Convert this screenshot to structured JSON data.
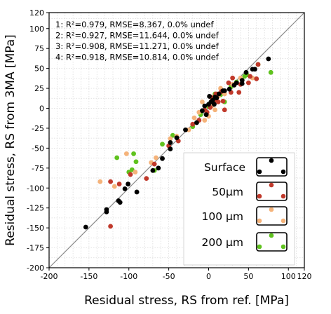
{
  "chart_data": {
    "type": "scatter",
    "xlabel": "Residual stress, RS from ref. [MPa]",
    "ylabel": "Residual stress, RS from 3MA [MPa]",
    "xlim": [
      -200,
      120
    ],
    "ylim": [
      -200,
      120
    ],
    "x_ticks": [
      "-200",
      "-150",
      "-100",
      "-50",
      "0",
      "50",
      "100",
      "120"
    ],
    "y_ticks": [
      "-200",
      "-175",
      "-150",
      "-125",
      "-100",
      "-75",
      "-50",
      "-25",
      "0",
      "25",
      "50",
      "75",
      "100",
      "120"
    ],
    "grid": true,
    "reference_line": "y = x",
    "stats": [
      "1: R²=0.979, RMSE=8.367, 0.0% undef",
      "2: R²=0.927, RMSE=11.644, 0.0% undef",
      "3: R²=0.908, RMSE=11.271, 0.0% undef",
      "4: R²=0.918, RMSE=10.814, 0.0% undef"
    ],
    "legend_position": "bottom-right",
    "series": [
      {
        "name": "Surface",
        "color": "#000000",
        "points": [
          [
            -154,
            -149
          ],
          [
            -128,
            -130
          ],
          [
            -128,
            -127
          ],
          [
            -113,
            -116
          ],
          [
            -111,
            -118
          ],
          [
            -105,
            -101
          ],
          [
            -101,
            -95
          ],
          [
            -90,
            -105
          ],
          [
            -70,
            -78
          ],
          [
            -63,
            -75
          ],
          [
            -58,
            -63
          ],
          [
            -48,
            -51
          ],
          [
            -48,
            -43
          ],
          [
            -40,
            -37
          ],
          [
            -29,
            -27
          ],
          [
            -15,
            -18
          ],
          [
            -8,
            -3
          ],
          [
            -5,
            3
          ],
          [
            -3,
            -8
          ],
          [
            0,
            5
          ],
          [
            1,
            15
          ],
          [
            3,
            8
          ],
          [
            5,
            10
          ],
          [
            7,
            5
          ],
          [
            8,
            14
          ],
          [
            10,
            13
          ],
          [
            13,
            18
          ],
          [
            18,
            22
          ],
          [
            20,
            22
          ],
          [
            26,
            24
          ],
          [
            32,
            29
          ],
          [
            35,
            32
          ],
          [
            42,
            31
          ],
          [
            42,
            35
          ],
          [
            47,
            45
          ],
          [
            55,
            49
          ],
          [
            58,
            49
          ],
          [
            75,
            62
          ]
        ]
      },
      {
        "name": "50µm",
        "color": "#c0392b",
        "points": [
          [
            -123,
            -148
          ],
          [
            -123,
            -92
          ],
          [
            -112,
            -95
          ],
          [
            -98,
            -83
          ],
          [
            -78,
            -88
          ],
          [
            -68,
            -70
          ],
          [
            -50,
            -47
          ],
          [
            -38,
            -41
          ],
          [
            -20,
            -20
          ],
          [
            -12,
            -15
          ],
          [
            -5,
            -2
          ],
          [
            -2,
            -5
          ],
          [
            2,
            1
          ],
          [
            3,
            14
          ],
          [
            8,
            10
          ],
          [
            9,
            18
          ],
          [
            12,
            8
          ],
          [
            12,
            18
          ],
          [
            16,
            21
          ],
          [
            18,
            9
          ],
          [
            20,
            -2
          ],
          [
            25,
            32
          ],
          [
            28,
            20
          ],
          [
            30,
            38
          ],
          [
            38,
            20
          ],
          [
            40,
            30
          ],
          [
            50,
            32
          ],
          [
            52,
            40
          ],
          [
            60,
            37
          ],
          [
            62,
            55
          ]
        ]
      },
      {
        "name": "100 µm",
        "color": "#f5b37a",
        "points": [
          [
            -136,
            -92
          ],
          [
            -118,
            -98
          ],
          [
            -103,
            -57
          ],
          [
            -92,
            -80
          ],
          [
            -72,
            -68
          ],
          [
            -66,
            -62
          ],
          [
            -48,
            -38
          ],
          [
            -40,
            -35
          ],
          [
            -25,
            -27
          ],
          [
            -18,
            -12
          ],
          [
            -12,
            -5
          ],
          [
            -8,
            8
          ],
          [
            -5,
            -15
          ],
          [
            0,
            -10
          ],
          [
            4,
            3
          ],
          [
            8,
            -2
          ],
          [
            12,
            15
          ],
          [
            15,
            25
          ],
          [
            20,
            18
          ],
          [
            30,
            30
          ],
          [
            40,
            38
          ],
          [
            55,
            38
          ]
        ]
      },
      {
        "name": "200 µm",
        "color": "#5fc21e",
        "points": [
          [
            -115,
            -62
          ],
          [
            -100,
            -80
          ],
          [
            -96,
            -77
          ],
          [
            -94,
            -57
          ],
          [
            -91,
            -67
          ],
          [
            -68,
            -78
          ],
          [
            -58,
            -45
          ],
          [
            -45,
            -34
          ],
          [
            -20,
            -23
          ],
          [
            -10,
            -8
          ],
          [
            0,
            2
          ],
          [
            8,
            18
          ],
          [
            15,
            17
          ],
          [
            20,
            8
          ],
          [
            28,
            27
          ],
          [
            35,
            33
          ],
          [
            45,
            40
          ],
          [
            48,
            42
          ],
          [
            62,
            55
          ],
          [
            78,
            45
          ]
        ]
      }
    ]
  }
}
